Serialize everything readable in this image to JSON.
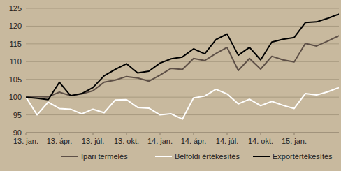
{
  "chart_data": {
    "type": "line",
    "categories": [
      "13. jan.",
      null,
      null,
      "13. ápr.",
      null,
      null,
      "13. júl.",
      null,
      null,
      "13. okt.",
      null,
      null,
      "14. jan.",
      null,
      null,
      "14. ápr.",
      null,
      null,
      "14. júl.",
      null,
      null,
      "14. okt.",
      null,
      null,
      "15. jan.",
      null,
      null,
      null,
      null
    ],
    "series": [
      {
        "name": "Ipari termelés",
        "color": "#5e5047",
        "values": [
          100,
          100.2,
          100.1,
          101.4,
          100.4,
          100.9,
          101.8,
          104.2,
          104.8,
          105.8,
          105.4,
          104.5,
          106.2,
          108.1,
          107.8,
          110.9,
          110.3,
          112.3,
          114,
          107.5,
          110.9,
          107.9,
          111.5,
          110.5,
          109.9,
          115.1,
          114.4,
          115.8,
          117.3
        ]
      },
      {
        "name": "Belföldi értékesítés",
        "color": "#ffffff",
        "values": [
          100,
          95,
          98.6,
          96.8,
          96.6,
          95.3,
          96.6,
          95.6,
          99.2,
          99.3,
          97.1,
          96.9,
          95,
          95.3,
          93.8,
          99.8,
          100.3,
          102.2,
          100.9,
          98.1,
          99.4,
          97.6,
          98.8,
          97.7,
          96.8,
          101,
          100.6,
          101.5,
          102.7
        ]
      },
      {
        "name": "Exportértékesítés",
        "color": "#000000",
        "values": [
          100,
          99.7,
          99.3,
          104.2,
          100.4,
          101,
          102.7,
          106,
          107.8,
          109.4,
          106.8,
          107.3,
          109.6,
          110.8,
          111.3,
          113.6,
          112.2,
          116.2,
          117.8,
          111.8,
          114,
          110.5,
          115.5,
          116.3,
          116.8,
          121,
          121.2,
          122.2,
          123.4
        ]
      }
    ],
    "ylim": [
      90,
      125
    ],
    "yticks": [
      90,
      95,
      100,
      105,
      110,
      115,
      120,
      125
    ],
    "grid": true,
    "legend": "bottom"
  }
}
